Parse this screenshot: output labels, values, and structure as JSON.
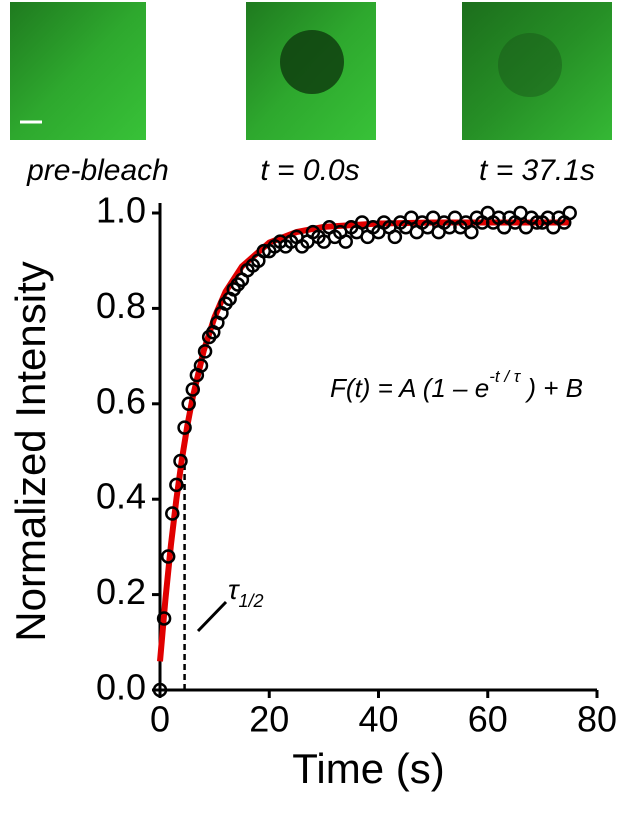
{
  "panels": [
    {
      "caption": "pre-bleach"
    },
    {
      "caption": "t = 0.0s"
    },
    {
      "caption": "t = 37.1s"
    }
  ],
  "chart_data": {
    "type": "scatter",
    "xlabel": "Time (s)",
    "ylabel": "Normalized Intensity",
    "xlim": [
      0,
      80
    ],
    "ylim": [
      0,
      1
    ],
    "xticks": [
      0,
      20,
      40,
      60,
      80
    ],
    "yticks": [
      {
        "value": 0,
        "label": "0.0"
      },
      {
        "value": 0.2,
        "label": "0.2"
      },
      {
        "value": 0.4,
        "label": "0.4"
      },
      {
        "value": 0.6,
        "label": "0.6"
      },
      {
        "value": 0.8,
        "label": "0.8"
      },
      {
        "value": 1,
        "label": "1.0"
      }
    ],
    "series": [
      {
        "mode": "markers",
        "color": "#000000",
        "x": [
          0,
          0.75,
          1.5,
          2.25,
          3,
          3.75,
          4.5,
          5.25,
          6,
          6.75,
          7.5,
          8.25,
          9,
          9.75,
          10.5,
          11.25,
          12,
          12.75,
          13.5,
          14.25,
          15,
          16,
          17,
          18,
          19,
          20,
          21,
          22,
          23,
          24,
          25,
          26,
          27,
          28,
          29,
          30,
          31,
          32,
          33,
          34,
          35,
          36,
          37,
          38,
          39,
          40,
          41,
          42,
          43,
          44,
          45,
          46,
          47,
          48,
          49,
          50,
          51,
          52,
          53,
          54,
          55,
          56,
          57,
          58,
          59,
          60,
          61,
          62,
          63,
          64,
          65,
          66,
          67,
          68,
          69,
          70,
          71,
          72,
          73,
          74,
          75
        ],
        "values": [
          0,
          0.15,
          0.28,
          0.37,
          0.43,
          0.48,
          0.55,
          0.6,
          0.63,
          0.66,
          0.68,
          0.71,
          0.74,
          0.75,
          0.77,
          0.79,
          0.81,
          0.82,
          0.84,
          0.85,
          0.86,
          0.88,
          0.89,
          0.9,
          0.92,
          0.92,
          0.93,
          0.94,
          0.93,
          0.94,
          0.95,
          0.93,
          0.94,
          0.96,
          0.95,
          0.94,
          0.97,
          0.95,
          0.96,
          0.94,
          0.97,
          0.96,
          0.98,
          0.95,
          0.97,
          0.96,
          0.98,
          0.97,
          0.95,
          0.98,
          0.97,
          0.99,
          0.96,
          0.98,
          0.97,
          0.99,
          0.96,
          0.98,
          0.97,
          0.99,
          0.97,
          0.98,
          0.96,
          0.99,
          0.98,
          1,
          0.98,
          0.99,
          0.97,
          0.99,
          0.98,
          1,
          0.97,
          0.99,
          0.98,
          0.98,
          0.99,
          0.97,
          0.99,
          0.98,
          1
        ]
      },
      {
        "mode": "line",
        "color": "#e00000",
        "x": [
          0,
          1,
          2,
          3,
          4,
          5,
          6,
          8,
          10,
          12,
          15,
          20,
          25,
          30,
          40,
          50,
          60,
          75
        ],
        "values": [
          0.06,
          0.191,
          0.304,
          0.4,
          0.483,
          0.554,
          0.614,
          0.711,
          0.782,
          0.835,
          0.888,
          0.938,
          0.96,
          0.971,
          0.978,
          0.98,
          0.98,
          0.98
        ]
      }
    ],
    "equation": {
      "main": "F(t) = A (1 – e",
      "exponent": "-t / τ",
      "tail": " ) + B"
    },
    "t_half": {
      "symbol": "τ",
      "subscript": "1/2",
      "x": 4.5,
      "y": 0.47
    }
  }
}
